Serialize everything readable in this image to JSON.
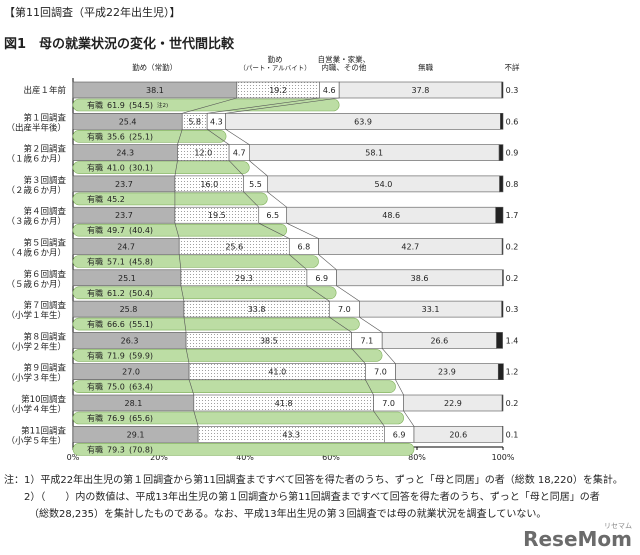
{
  "header_note": "【第11回調査（平成22年出生児）】",
  "fig_title": "図1　母の就業状況の変化・世代間比較",
  "watermark": "ReseMom",
  "watermark_sub": "リセマム",
  "notes": [
    "注：1）平成22年出生児の第１回調査から第11回調査まですべて回答を得た者のうち、ずっと「母と同居」の者（総数 18,220）を集計。",
    "　　2）（　　）内の数値は、平成13年出生児の第１回調査から第11回調査まですべて回答を得た者のうち、ずっと「母と同居」の者",
    "　　　（総数28,235）を集計したものである。なお、平成13年出生児の第３回調査では母の就業状況を調査していない。"
  ],
  "chart_data": {
    "type": "bar",
    "orientation": "horizontal",
    "stacked": true,
    "xlim": [
      0,
      100
    ],
    "xticks": [
      "0%",
      "20%",
      "40%",
      "60%",
      "80%",
      "100%"
    ],
    "column_headers": [
      "勤め（常勤）",
      "勤め\n（パート・アルバイト）",
      "自営業・家業、\n内職、その他",
      "無職",
      "不詳"
    ],
    "series": [
      {
        "name": "勤め（常勤）",
        "color": "#b3b3b3"
      },
      {
        "name": "勤め（パート・アルバイト）",
        "color": "#ffffff",
        "pattern": "dots"
      },
      {
        "name": "自営業・家業、内職、その他",
        "color": "#ffffff"
      },
      {
        "name": "無職",
        "color": "#ebebeb"
      },
      {
        "name": "不詳",
        "color": "#222222"
      }
    ],
    "employed_label": "有職",
    "employed_color": "#bcdda4",
    "rows": [
      {
        "label": [
          "出産１年前"
        ],
        "values": [
          38.1,
          19.2,
          4.6,
          37.8,
          0.3
        ],
        "employed": 61.9,
        "employed_text": "61.9",
        "prev_text": "(54.5)",
        "prev_note": "注2)"
      },
      {
        "label": [
          "第１回調査",
          "（出産半年後）"
        ],
        "values": [
          25.4,
          5.8,
          4.3,
          63.9,
          0.6
        ],
        "employed": 35.6,
        "employed_text": "35.6",
        "prev_text": "(25.1)"
      },
      {
        "label": [
          "第２回調査",
          "（１歳６か月）"
        ],
        "values": [
          24.3,
          12.0,
          4.7,
          58.1,
          0.9
        ],
        "employed": 41.0,
        "employed_text": "41.0",
        "prev_text": "(30.1)"
      },
      {
        "label": [
          "第３回調査",
          "（２歳６か月）"
        ],
        "values": [
          23.7,
          16.0,
          5.5,
          54.0,
          0.8
        ],
        "employed": 45.2,
        "employed_text": "45.2",
        "prev_text": ""
      },
      {
        "label": [
          "第４回調査",
          "（３歳６か月）"
        ],
        "values": [
          23.7,
          19.5,
          6.5,
          48.6,
          1.7
        ],
        "employed": 49.7,
        "employed_text": "49.7",
        "prev_text": "(40.4)"
      },
      {
        "label": [
          "第５回調査",
          "（４歳６か月）"
        ],
        "values": [
          24.7,
          25.6,
          6.8,
          42.7,
          0.2
        ],
        "employed": 57.1,
        "employed_text": "57.1",
        "prev_text": "(45.8)"
      },
      {
        "label": [
          "第６回調査",
          "（５歳６か月）"
        ],
        "values": [
          25.1,
          29.3,
          6.9,
          38.6,
          0.2
        ],
        "employed": 61.2,
        "employed_text": "61.2",
        "prev_text": "(50.4)"
      },
      {
        "label": [
          "第７回調査",
          "（小学１年生）"
        ],
        "values": [
          25.8,
          33.8,
          7.0,
          33.1,
          0.3
        ],
        "employed": 66.6,
        "employed_text": "66.6",
        "prev_text": "(55.1)"
      },
      {
        "label": [
          "第８回調査",
          "（小学２年生）"
        ],
        "values": [
          26.3,
          38.5,
          7.1,
          26.6,
          1.4
        ],
        "employed": 71.9,
        "employed_text": "71.9",
        "prev_text": "(59.9)"
      },
      {
        "label": [
          "第９回調査",
          "（小学３年生）"
        ],
        "values": [
          27.0,
          41.0,
          7.0,
          23.9,
          1.2
        ],
        "employed": 75.0,
        "employed_text": "75.0",
        "prev_text": "(63.4)"
      },
      {
        "label": [
          "第10回調査",
          "（小学４年生）"
        ],
        "values": [
          28.1,
          41.8,
          7.0,
          22.9,
          0.2
        ],
        "employed": 76.9,
        "employed_text": "76.9",
        "prev_text": "(65.6)"
      },
      {
        "label": [
          "第11回調査",
          "（小学５年生）"
        ],
        "values": [
          29.1,
          43.3,
          6.9,
          20.6,
          0.1
        ],
        "employed": 79.3,
        "employed_text": "79.3",
        "prev_text": "(70.8)"
      }
    ]
  }
}
